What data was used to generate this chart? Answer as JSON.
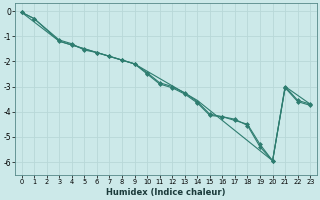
{
  "xlabel": "Humidex (Indice chaleur)",
  "background_color": "#cce9e9",
  "grid_color": "#b8d8d8",
  "line_color": "#2e7d70",
  "xlim": [
    -0.5,
    23.5
  ],
  "ylim": [
    -6.5,
    0.3
  ],
  "yticks": [
    0,
    -1,
    -2,
    -3,
    -4,
    -5,
    -6
  ],
  "xticks": [
    0,
    1,
    2,
    3,
    4,
    5,
    6,
    7,
    8,
    9,
    10,
    11,
    12,
    13,
    14,
    15,
    16,
    17,
    18,
    19,
    20,
    21,
    22,
    23
  ],
  "series1": [
    [
      0,
      -0.05
    ],
    [
      1,
      -0.3
    ],
    [
      3,
      -1.15
    ],
    [
      4,
      -1.3
    ],
    [
      5,
      -1.55
    ],
    [
      6,
      -1.65
    ],
    [
      7,
      -1.8
    ],
    [
      8,
      -1.95
    ],
    [
      9,
      -2.1
    ],
    [
      10,
      -2.5
    ],
    [
      11,
      -2.9
    ],
    [
      12,
      -3.05
    ],
    [
      13,
      -3.3
    ],
    [
      14,
      -3.65
    ],
    [
      15,
      -4.15
    ],
    [
      16,
      -4.2
    ],
    [
      17,
      -4.35
    ],
    [
      18,
      -4.5
    ],
    [
      19,
      -5.3
    ],
    [
      20,
      -5.95
    ],
    [
      21,
      -3.0
    ],
    [
      22,
      -3.55
    ],
    [
      23,
      -3.7
    ]
  ],
  "series2": [
    [
      0,
      -0.05
    ],
    [
      1,
      -0.3
    ],
    [
      3,
      -1.2
    ],
    [
      4,
      -1.35
    ],
    [
      5,
      -1.5
    ],
    [
      6,
      -1.65
    ],
    [
      7,
      -1.8
    ],
    [
      8,
      -1.95
    ],
    [
      9,
      -2.1
    ],
    [
      10,
      -2.45
    ],
    [
      11,
      -2.85
    ],
    [
      12,
      -3.0
    ],
    [
      13,
      -3.25
    ],
    [
      14,
      -3.6
    ],
    [
      15,
      -4.1
    ],
    [
      16,
      -4.2
    ],
    [
      17,
      -4.3
    ],
    [
      18,
      -4.55
    ],
    [
      19,
      -5.4
    ],
    [
      20,
      -5.95
    ],
    [
      21,
      -3.05
    ],
    [
      22,
      -3.6
    ],
    [
      23,
      -3.75
    ]
  ],
  "series3": [
    [
      0,
      -0.05
    ],
    [
      3,
      -1.2
    ],
    [
      9,
      -2.1
    ],
    [
      14,
      -3.55
    ],
    [
      20,
      -5.95
    ],
    [
      21,
      -3.0
    ],
    [
      23,
      -3.7
    ]
  ]
}
